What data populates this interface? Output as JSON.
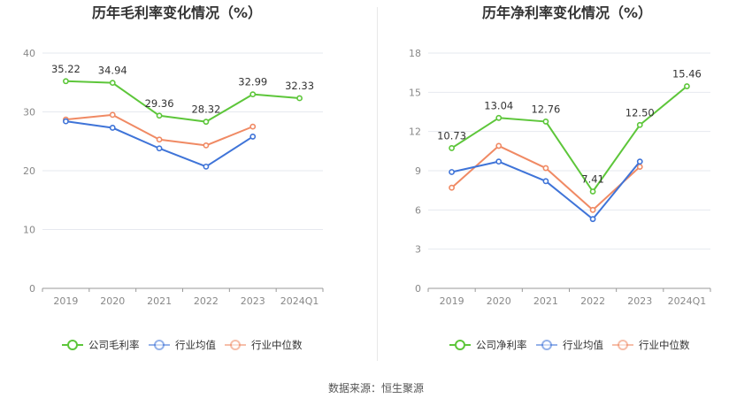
{
  "source": "数据来源：恒生聚源",
  "colors": {
    "company": "#5dc63a",
    "industry_avg": "#3f74d8",
    "industry_median": "#f08a64"
  },
  "chart_data": [
    {
      "type": "line",
      "title": "历年毛利率变化情况（%）",
      "categories": [
        "2019",
        "2020",
        "2021",
        "2022",
        "2023",
        "2024Q1"
      ],
      "ylim": [
        0,
        40
      ],
      "yticks": [
        "0",
        "10",
        "20",
        "30",
        "40"
      ],
      "ytick_values": [
        0,
        10,
        20,
        30,
        40
      ],
      "grid": true,
      "legend_position": "bottom",
      "series": [
        {
          "name": "公司毛利率",
          "color": "#5dc63a",
          "labeled": true,
          "values": [
            35.22,
            34.94,
            29.36,
            28.32,
            32.99,
            32.33
          ],
          "labels": [
            "35.22",
            "34.94",
            "29.36",
            "28.32",
            "32.99",
            "32.33"
          ]
        },
        {
          "name": "行业均值",
          "color": "#3f74d8",
          "labeled": false,
          "values": [
            28.4,
            27.3,
            23.8,
            20.7,
            25.8,
            null
          ]
        },
        {
          "name": "行业中位数",
          "color": "#f08a64",
          "labeled": false,
          "values": [
            28.7,
            29.5,
            25.3,
            24.3,
            27.5,
            null
          ]
        }
      ]
    },
    {
      "type": "line",
      "title": "历年净利率变化情况（%）",
      "categories": [
        "2019",
        "2020",
        "2021",
        "2022",
        "2023",
        "2024Q1"
      ],
      "ylim": [
        0,
        18
      ],
      "yticks": [
        "0",
        "3",
        "6",
        "9",
        "12",
        "15",
        "18"
      ],
      "ytick_values": [
        0,
        3,
        6,
        9,
        12,
        15,
        18
      ],
      "grid": true,
      "legend_position": "bottom",
      "series": [
        {
          "name": "公司净利率",
          "color": "#5dc63a",
          "labeled": true,
          "values": [
            10.73,
            13.04,
            12.76,
            7.41,
            12.5,
            15.46
          ],
          "labels": [
            "10.73",
            "13.04",
            "12.76",
            "7.41",
            "12.50",
            "15.46"
          ]
        },
        {
          "name": "行业均值",
          "color": "#3f74d8",
          "labeled": false,
          "values": [
            8.9,
            9.7,
            8.2,
            5.3,
            9.7,
            null
          ]
        },
        {
          "name": "行业中位数",
          "color": "#f08a64",
          "labeled": false,
          "values": [
            7.7,
            10.9,
            9.2,
            6.0,
            9.3,
            null
          ]
        }
      ]
    }
  ]
}
